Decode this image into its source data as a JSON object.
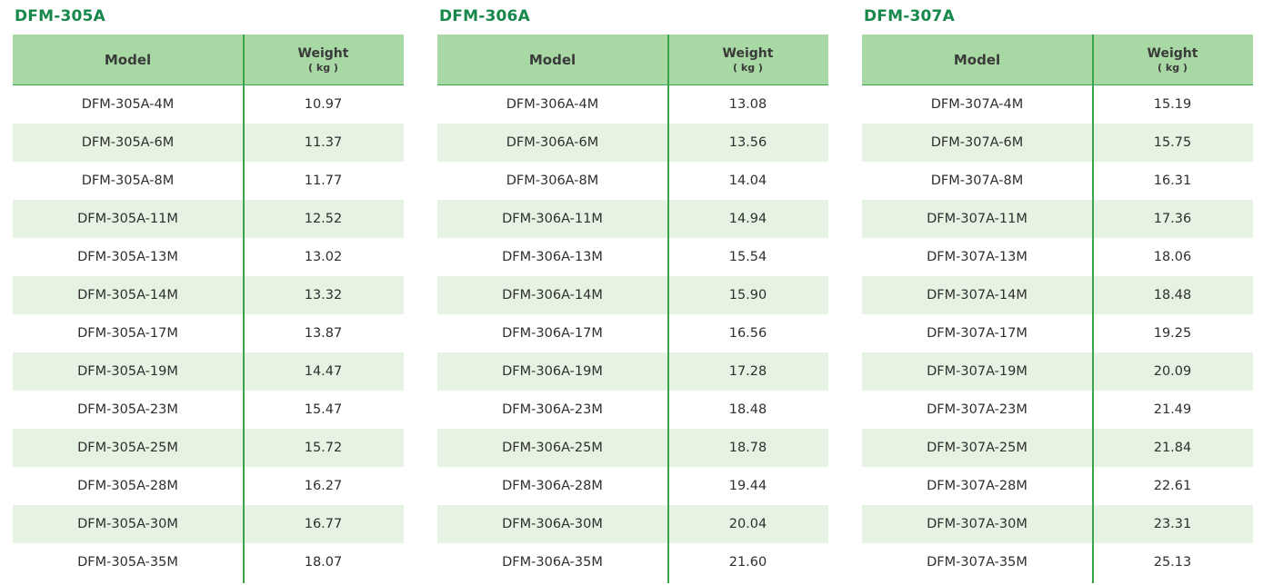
{
  "tables": [
    {
      "title": "DFM-305A",
      "headers": {
        "model": "Model",
        "weight": "Weight",
        "unit": "( kg )"
      },
      "rows": [
        {
          "model": "DFM-305A-4M",
          "weight": "10.97"
        },
        {
          "model": "DFM-305A-6M",
          "weight": "11.37"
        },
        {
          "model": "DFM-305A-8M",
          "weight": "11.77"
        },
        {
          "model": "DFM-305A-11M",
          "weight": "12.52"
        },
        {
          "model": "DFM-305A-13M",
          "weight": "13.02"
        },
        {
          "model": "DFM-305A-14M",
          "weight": "13.32"
        },
        {
          "model": "DFM-305A-17M",
          "weight": "13.87"
        },
        {
          "model": "DFM-305A-19M",
          "weight": "14.47"
        },
        {
          "model": "DFM-305A-23M",
          "weight": "15.47"
        },
        {
          "model": "DFM-305A-25M",
          "weight": "15.72"
        },
        {
          "model": "DFM-305A-28M",
          "weight": "16.27"
        },
        {
          "model": "DFM-305A-30M",
          "weight": "16.77"
        },
        {
          "model": "DFM-305A-35M",
          "weight": "18.07"
        }
      ]
    },
    {
      "title": "DFM-306A",
      "headers": {
        "model": "Model",
        "weight": "Weight",
        "unit": "( kg )"
      },
      "rows": [
        {
          "model": "DFM-306A-4M",
          "weight": "13.08"
        },
        {
          "model": "DFM-306A-6M",
          "weight": "13.56"
        },
        {
          "model": "DFM-306A-8M",
          "weight": "14.04"
        },
        {
          "model": "DFM-306A-11M",
          "weight": "14.94"
        },
        {
          "model": "DFM-306A-13M",
          "weight": "15.54"
        },
        {
          "model": "DFM-306A-14M",
          "weight": "15.90"
        },
        {
          "model": "DFM-306A-17M",
          "weight": "16.56"
        },
        {
          "model": "DFM-306A-19M",
          "weight": "17.28"
        },
        {
          "model": "DFM-306A-23M",
          "weight": "18.48"
        },
        {
          "model": "DFM-306A-25M",
          "weight": "18.78"
        },
        {
          "model": "DFM-306A-28M",
          "weight": "19.44"
        },
        {
          "model": "DFM-306A-30M",
          "weight": "20.04"
        },
        {
          "model": "DFM-306A-35M",
          "weight": "21.60"
        }
      ]
    },
    {
      "title": "DFM-307A",
      "headers": {
        "model": "Model",
        "weight": "Weight",
        "unit": "( kg )"
      },
      "rows": [
        {
          "model": "DFM-307A-4M",
          "weight": "15.19"
        },
        {
          "model": "DFM-307A-6M",
          "weight": "15.75"
        },
        {
          "model": "DFM-307A-8M",
          "weight": "16.31"
        },
        {
          "model": "DFM-307A-11M",
          "weight": "17.36"
        },
        {
          "model": "DFM-307A-13M",
          "weight": "18.06"
        },
        {
          "model": "DFM-307A-14M",
          "weight": "18.48"
        },
        {
          "model": "DFM-307A-17M",
          "weight": "19.25"
        },
        {
          "model": "DFM-307A-19M",
          "weight": "20.09"
        },
        {
          "model": "DFM-307A-23M",
          "weight": "21.49"
        },
        {
          "model": "DFM-307A-25M",
          "weight": "21.84"
        },
        {
          "model": "DFM-307A-28M",
          "weight": "22.61"
        },
        {
          "model": "DFM-307A-30M",
          "weight": "23.31"
        },
        {
          "model": "DFM-307A-35M",
          "weight": "25.13"
        }
      ]
    }
  ],
  "colors": {
    "title_green": "#16884a",
    "header_fill": "#a8d9a5",
    "rule_green": "#3aa44a",
    "row_shade": "#e6f3e3"
  }
}
